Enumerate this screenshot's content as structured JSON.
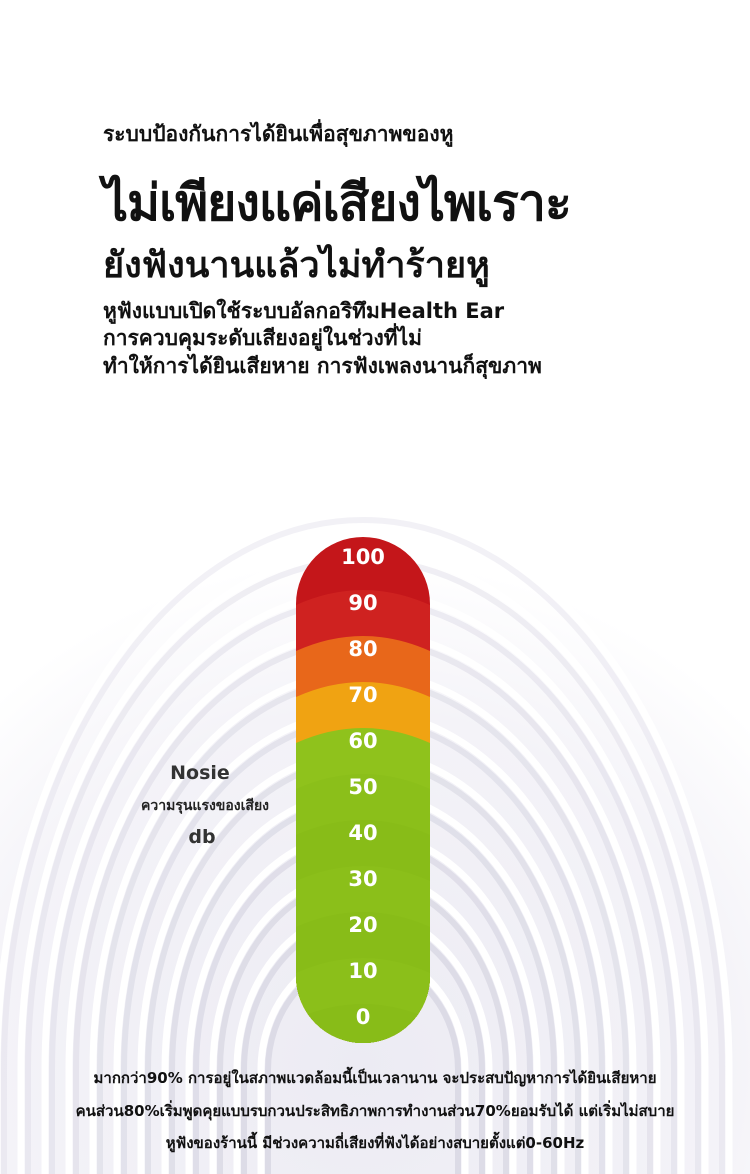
{
  "header": {
    "kicker": "ระบบป้องกันการได้ยินเพื่อสุขภาพของหู",
    "headline": "ไม่เพียงแค่เสียงไพเราะ",
    "subheadline": "ยังฟังนานแล้วไม่ทำร้ายหู",
    "body_lines": [
      "หูฟังแบบเปิดใช้ระบบอัลกอริทึมHealth Ear",
      "การควบคุมระดับเสียงอยู่ในช่วงที่ไม่",
      "ทำให้การได้ยินเสียหาย การฟังเพลงนานก็สุขภาพ"
    ]
  },
  "gauge": {
    "levels": [
      "100",
      "90",
      "80",
      "70",
      "60",
      "50",
      "40",
      "30",
      "20",
      "10",
      "0"
    ],
    "colors": [
      "#c4161a",
      "#cf2220",
      "#e8671a",
      "#f0a312",
      "#8fc21c",
      "#8bbf1a",
      "#88bc18",
      "#8bbf1a",
      "#88bc18",
      "#8bbf1a",
      "#88bc18"
    ],
    "label_title": "Nosie",
    "label_thai": "ความรุนแรงของเสียง",
    "label_unit": "db"
  },
  "footer": {
    "lines": [
      "มากกว่า90% การอยู่ในสภาพแวดล้อมนี้เป็นเวลานาน จะประสบปัญหาการได้ยินเสียหาย",
      "คนส่วน80%เริ่มพูดคุยแบบรบกวนประสิทธิภาพการทำงานส่วน70%ยอมรับได้ แต่เริ่มไม่สบาย",
      "หูฟังของร้านนี้ มีช่วงความถี่เสียงที่ฟังได้อย่างสบายตั้งแต่0-60Hz"
    ]
  }
}
